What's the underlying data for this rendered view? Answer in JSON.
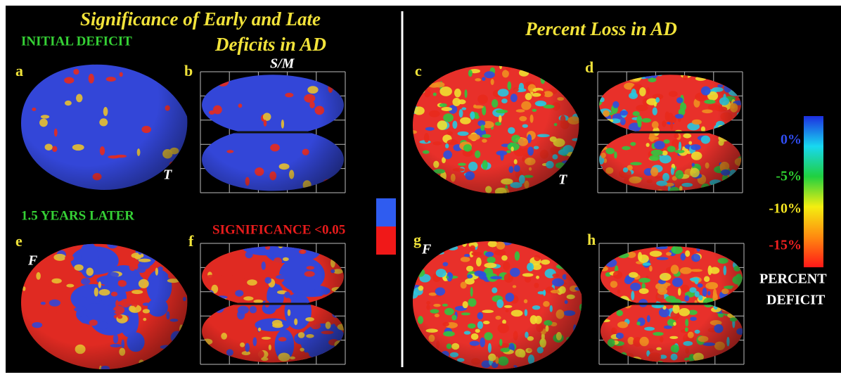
{
  "left_title": [
    "Significance of Early and Late",
    "Deficits in AD"
  ],
  "right_title": "Percent Loss in AD",
  "row_labels": [
    "INITIAL DEFICIT",
    "1.5 YEARS LATER"
  ],
  "panels": [
    {
      "label": "a",
      "annotation": "T"
    },
    {
      "label": "b",
      "annotation": "S/M"
    },
    {
      "label": "c",
      "annotation": "T"
    },
    {
      "label": "d"
    },
    {
      "label": "e",
      "annotation": "F"
    },
    {
      "label": "f"
    },
    {
      "label": "g",
      "annotation": "F"
    },
    {
      "label": "h"
    }
  ],
  "significance_legend": "SIGNIFICANCE <0.05",
  "percent_scale": {
    "ticks": [
      "0%",
      "-5%",
      "-10%",
      "-15%"
    ],
    "title": [
      "PERCENT",
      "DEFICIT"
    ]
  }
}
